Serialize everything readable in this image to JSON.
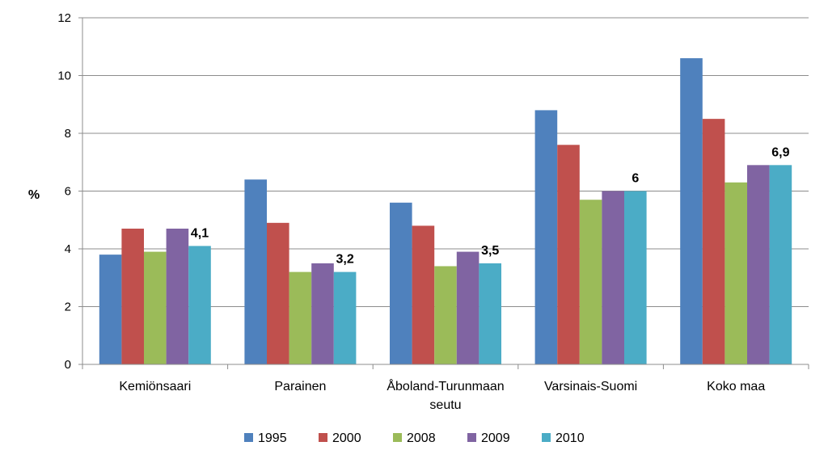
{
  "chart_data": {
    "type": "bar",
    "ylabel": "%",
    "ylim": [
      0,
      12
    ],
    "yticks": [
      0,
      2,
      4,
      6,
      8,
      10,
      12
    ],
    "grid": true,
    "legend_position": "bottom",
    "categories": [
      "Kemiönsaari",
      "Parainen",
      "Åboland-Turunmaan seutu",
      "Varsinais-Suomi",
      "Koko maa"
    ],
    "series": [
      {
        "name": "1995",
        "color": "#4f81bd",
        "values": [
          3.8,
          6.4,
          5.6,
          8.8,
          10.6
        ]
      },
      {
        "name": "2000",
        "color": "#c0504d",
        "values": [
          4.7,
          4.9,
          4.8,
          7.6,
          8.5
        ]
      },
      {
        "name": "2008",
        "color": "#9bbb59",
        "values": [
          3.9,
          3.2,
          3.4,
          5.7,
          6.3
        ]
      },
      {
        "name": "2009",
        "color": "#8064a2",
        "values": [
          4.7,
          3.5,
          3.9,
          6.0,
          6.9
        ]
      },
      {
        "name": "2010",
        "color": "#4bacc6",
        "values": [
          4.1,
          3.2,
          3.5,
          6.0,
          6.9
        ]
      }
    ],
    "data_labels": {
      "series": "2010",
      "texts": [
        "4,1",
        "3,2",
        "3,5",
        "6",
        "6,9"
      ]
    }
  }
}
